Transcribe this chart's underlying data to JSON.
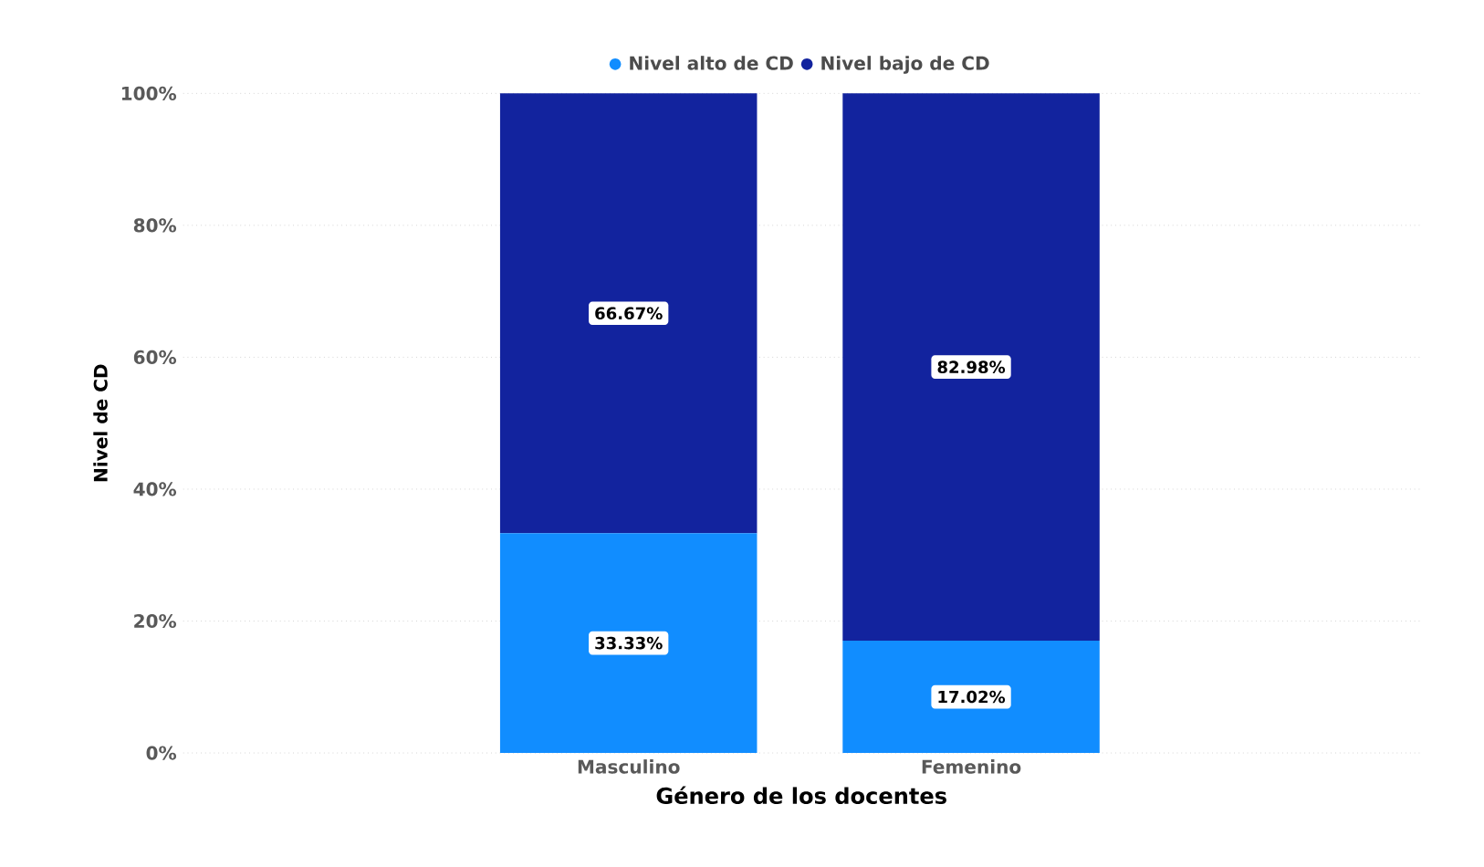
{
  "chart_data": {
    "type": "bar",
    "stacked": true,
    "xlabel": "Género de los docentes",
    "ylabel": "Nivel de CD",
    "categories": [
      "Masculino",
      "Femenino"
    ],
    "series": [
      {
        "name": "Nivel alto de CD",
        "color": "#118dff",
        "values": [
          33.33,
          17.02
        ],
        "value_labels": [
          "33.33%",
          "17.02%"
        ]
      },
      {
        "name": "Nivel bajo de CD",
        "color": "#12239e",
        "values": [
          66.67,
          82.98
        ],
        "value_labels": [
          "66.67%",
          "82.98%"
        ]
      }
    ],
    "ylim": [
      0,
      100
    ],
    "yticks": [
      {
        "value": 0,
        "label": "0%"
      },
      {
        "value": 20,
        "label": "20%"
      },
      {
        "value": 40,
        "label": "40%"
      },
      {
        "value": 60,
        "label": "60%"
      },
      {
        "value": 80,
        "label": "80%"
      },
      {
        "value": 100,
        "label": "100%"
      }
    ],
    "grid": "y",
    "legend": "top"
  }
}
